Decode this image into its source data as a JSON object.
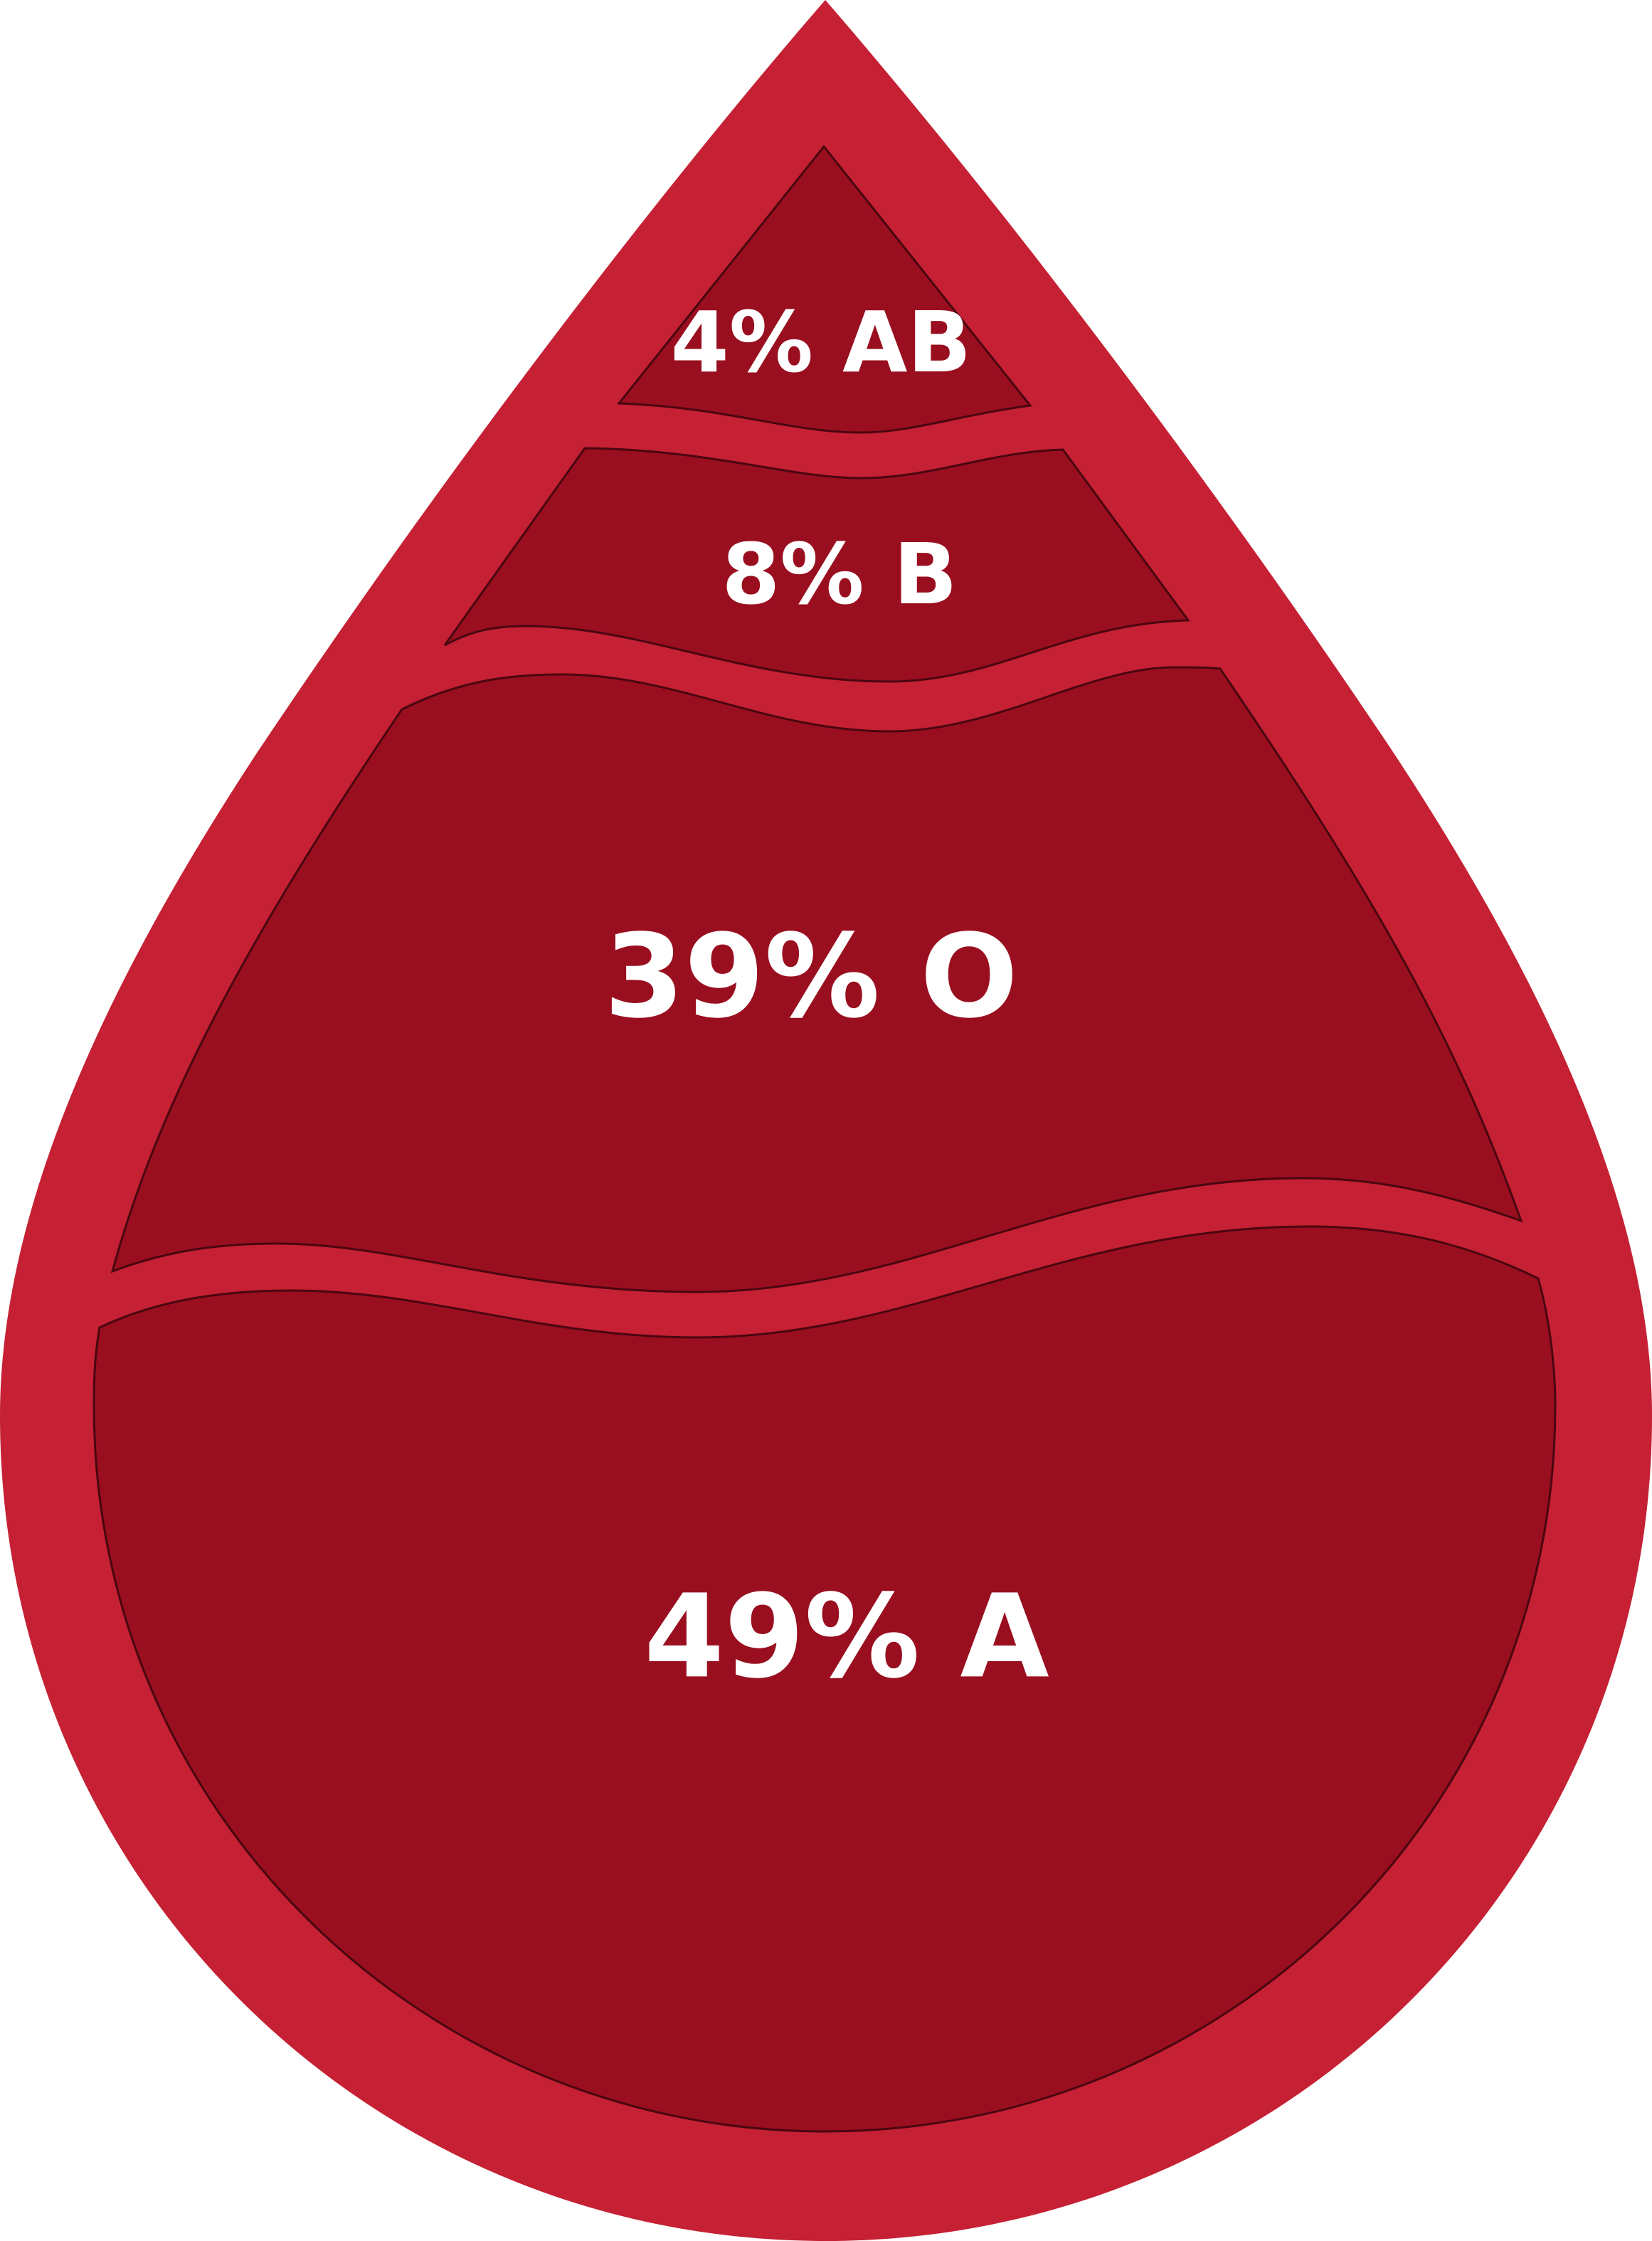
{
  "chart_data": {
    "type": "pie",
    "categories": [
      "A",
      "O",
      "B",
      "AB"
    ],
    "values": [
      49,
      39,
      8,
      4
    ],
    "labels": [
      "49% A",
      "39% O",
      "8% B",
      "4% AB"
    ]
  },
  "colors": {
    "drop": "#c52033",
    "segment": "#990f1f",
    "label": "#ffffff"
  }
}
